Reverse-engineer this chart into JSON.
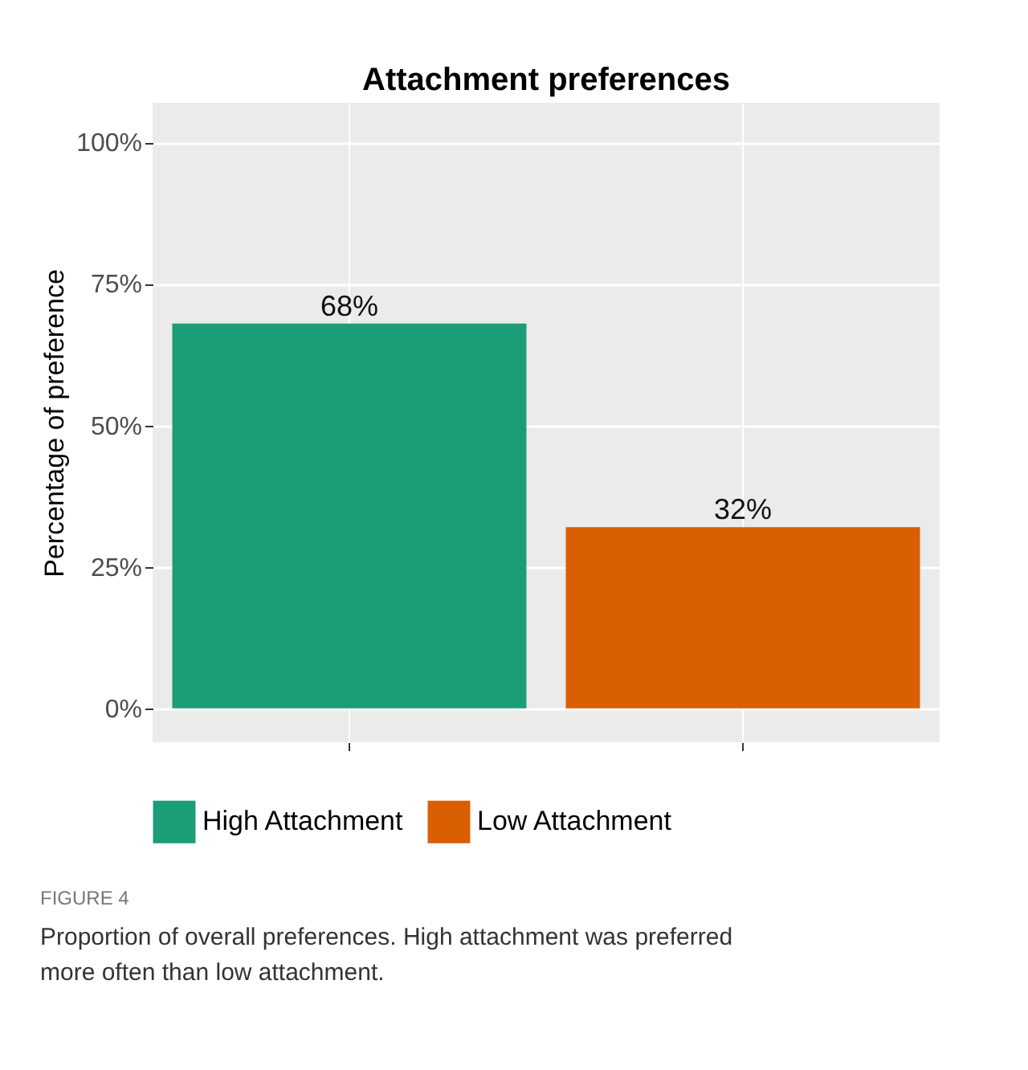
{
  "chart_data": {
    "type": "bar",
    "title": "Attachment preferences",
    "ylabel": "Percentage of preference",
    "categories": [
      null,
      null
    ],
    "series": [
      {
        "name": "High Attachment",
        "color": "#1b9e77",
        "values": [
          68,
          null
        ],
        "value_labels": [
          "68%",
          null
        ]
      },
      {
        "name": "Low Attachment",
        "color": "#d95f02",
        "values": [
          null,
          32
        ],
        "value_labels": [
          null,
          "32%"
        ]
      }
    ],
    "ylim": [
      -6,
      107
    ],
    "yticks": [
      {
        "value": 0,
        "label": "0%"
      },
      {
        "value": 25,
        "label": "25%"
      },
      {
        "value": 50,
        "label": "50%"
      },
      {
        "value": 75,
        "label": "75%"
      },
      {
        "value": 100,
        "label": "100%"
      }
    ],
    "grid": true,
    "legend": "bottom",
    "tick_labels": "y",
    "annotations": [
      "FIGURE 4",
      "Proportion of overall preferences. High attachment was preferred more often than low attachment."
    ]
  }
}
